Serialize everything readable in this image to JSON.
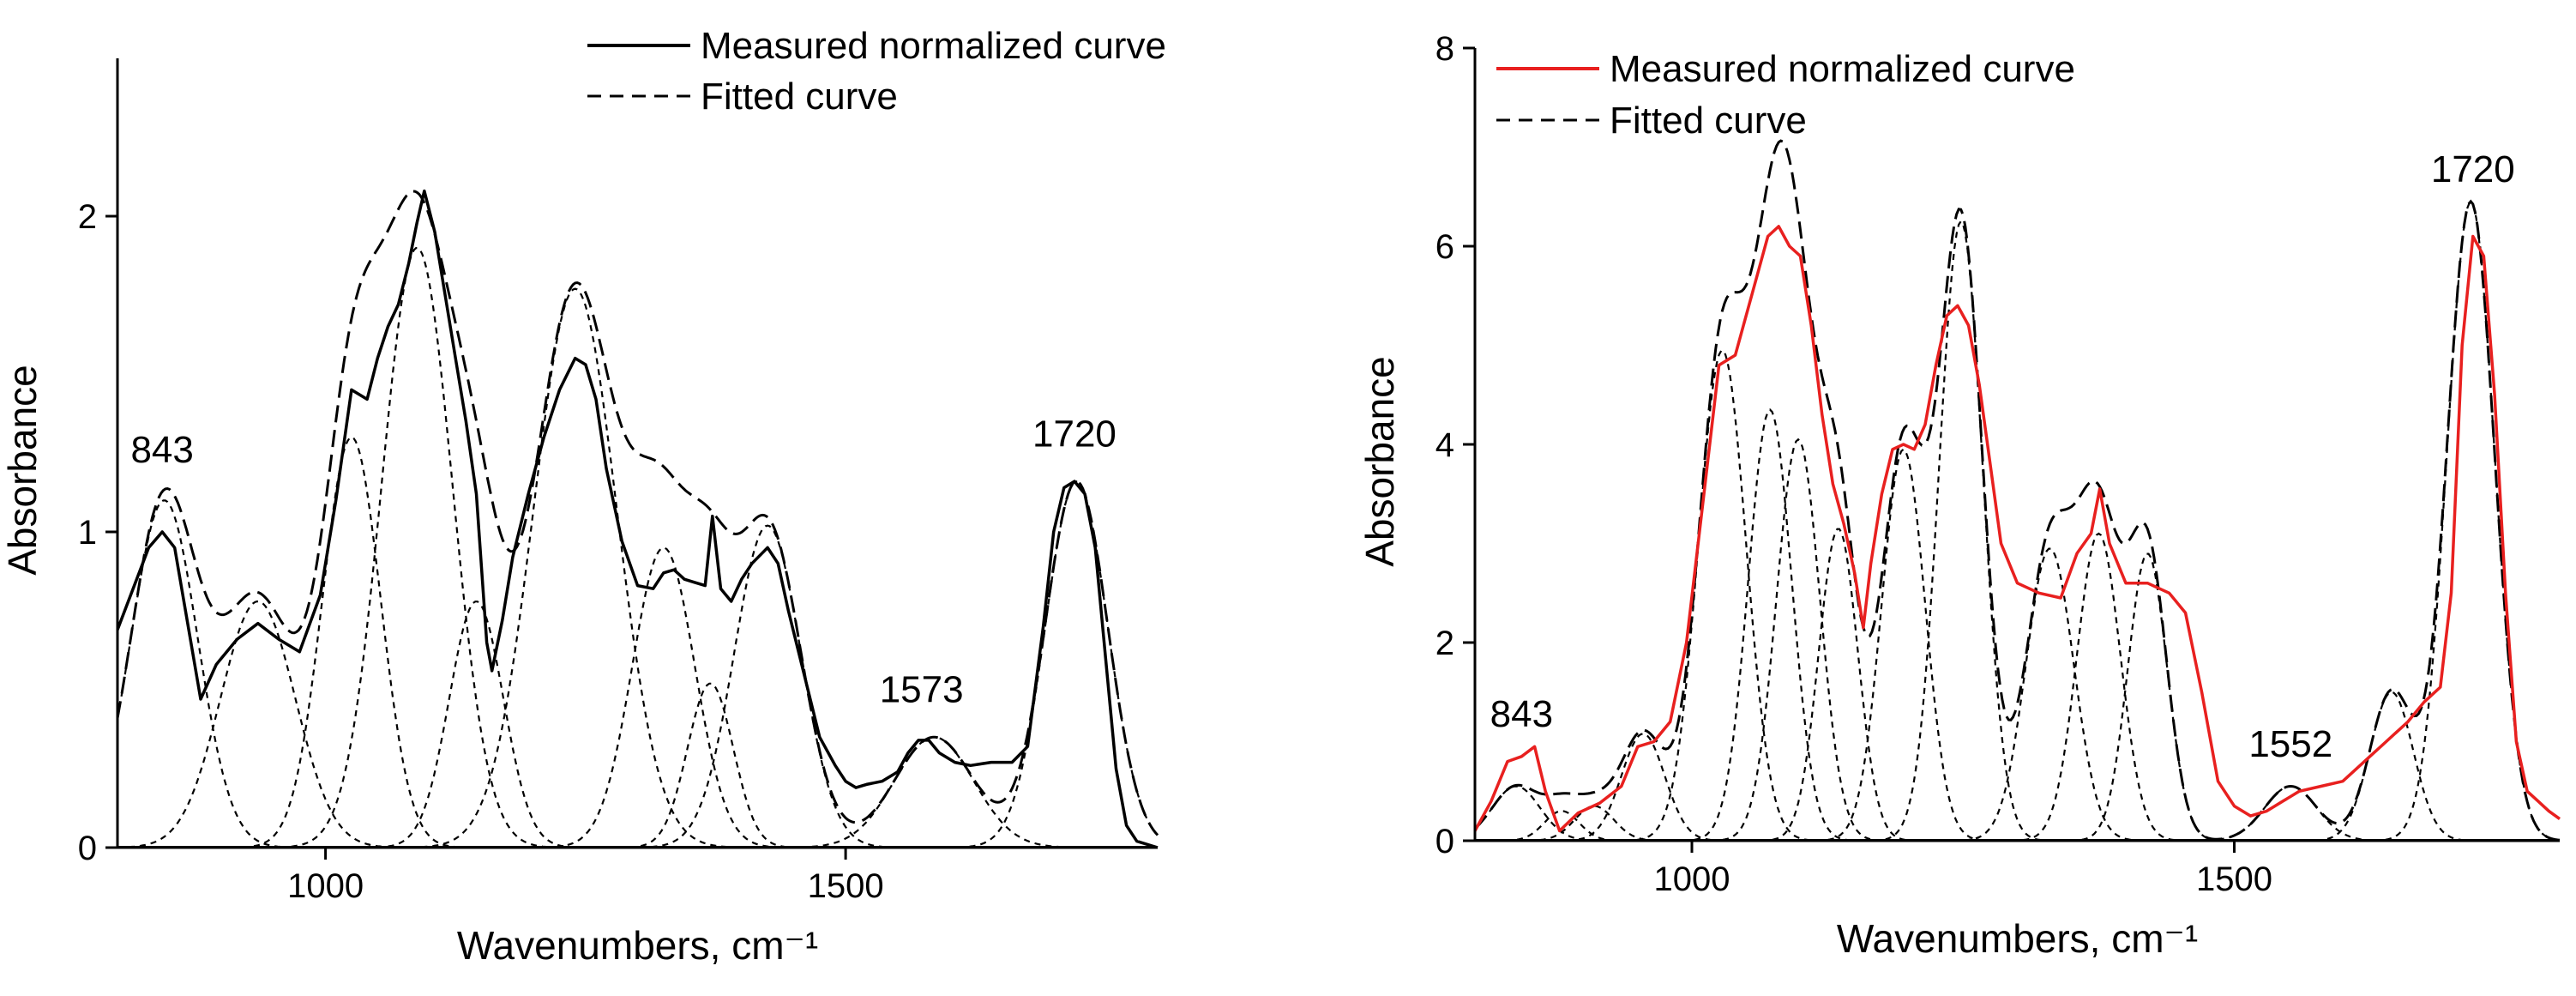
{
  "chart_data": [
    {
      "type": "line",
      "panel": "left",
      "xlabel": "Wavenumbers, cm⁻¹",
      "ylabel": "Absorbance",
      "xlim": [
        800,
        1800
      ],
      "ylim": [
        0,
        2.5
      ],
      "x_ticks": [
        1000,
        1500
      ],
      "y_ticks": [
        0,
        1,
        2
      ],
      "legend": {
        "position": "top-right",
        "measured_label": "Measured normalized curve",
        "fitted_label": "Fitted curve"
      },
      "colors": {
        "measured": "#000000",
        "fitted": "#000000",
        "components": "#000000"
      },
      "peak_labels": [
        {
          "text": "843",
          "x": 843,
          "y": 1.22
        },
        {
          "text": "1573",
          "x": 1573,
          "y": 0.46
        },
        {
          "text": "1720",
          "x": 1720,
          "y": 1.27
        }
      ],
      "series": [
        {
          "name": "Measured normalized curve",
          "style": "solid",
          "x": [
            800,
            815,
            830,
            843,
            855,
            868,
            880,
            895,
            915,
            935,
            955,
            975,
            995,
            1010,
            1025,
            1040,
            1050,
            1060,
            1070,
            1080,
            1088,
            1095,
            1105,
            1115,
            1125,
            1135,
            1145,
            1155,
            1160,
            1170,
            1180,
            1195,
            1210,
            1225,
            1240,
            1250,
            1260,
            1270,
            1285,
            1300,
            1315,
            1325,
            1335,
            1345,
            1355,
            1365,
            1372,
            1380,
            1390,
            1400,
            1410,
            1425,
            1435,
            1445,
            1460,
            1475,
            1490,
            1500,
            1510,
            1520,
            1535,
            1550,
            1560,
            1570,
            1580,
            1590,
            1605,
            1620,
            1640,
            1660,
            1675,
            1690,
            1700,
            1710,
            1720,
            1730,
            1740,
            1750,
            1760,
            1770,
            1780,
            1800
          ],
          "y": [
            0.69,
            0.82,
            0.95,
            1.0,
            0.95,
            0.7,
            0.47,
            0.58,
            0.66,
            0.71,
            0.66,
            0.62,
            0.8,
            1.1,
            1.45,
            1.42,
            1.55,
            1.65,
            1.72,
            1.85,
            1.98,
            2.08,
            1.95,
            1.75,
            1.55,
            1.35,
            1.12,
            0.65,
            0.56,
            0.72,
            0.92,
            1.12,
            1.3,
            1.45,
            1.55,
            1.53,
            1.42,
            1.2,
            0.97,
            0.83,
            0.82,
            0.87,
            0.88,
            0.85,
            0.84,
            0.83,
            1.05,
            0.82,
            0.78,
            0.85,
            0.9,
            0.95,
            0.9,
            0.75,
            0.55,
            0.35,
            0.26,
            0.21,
            0.19,
            0.2,
            0.21,
            0.24,
            0.3,
            0.34,
            0.34,
            0.3,
            0.27,
            0.26,
            0.27,
            0.27,
            0.32,
            0.7,
            1.0,
            1.14,
            1.16,
            1.12,
            0.95,
            0.6,
            0.25,
            0.07,
            0.02,
            0.0
          ]
        },
        {
          "name": "Fitted curve",
          "style": "long-dash",
          "components": [
            {
              "center": 845,
              "height": 1.1,
              "width": 32
            },
            {
              "center": 935,
              "height": 0.78,
              "width": 36
            },
            {
              "center": 1025,
              "height": 1.3,
              "width": 28
            },
            {
              "center": 1088,
              "height": 1.9,
              "width": 34
            },
            {
              "center": 1145,
              "height": 0.78,
              "width": 26
            },
            {
              "center": 1240,
              "height": 1.77,
              "width": 40
            },
            {
              "center": 1325,
              "height": 0.95,
              "width": 30
            },
            {
              "center": 1370,
              "height": 0.52,
              "width": 22
            },
            {
              "center": 1425,
              "height": 1.02,
              "width": 32
            },
            {
              "center": 1585,
              "height": 0.35,
              "width": 38
            },
            {
              "center": 1722,
              "height": 1.16,
              "width": 30
            }
          ]
        }
      ]
    },
    {
      "type": "line",
      "panel": "right",
      "xlabel": "Wavenumbers, cm⁻¹",
      "ylabel": "Absorbance",
      "xlim": [
        800,
        1800
      ],
      "ylim": [
        0,
        8
      ],
      "x_ticks": [
        1000,
        1500
      ],
      "y_ticks": [
        0,
        2,
        4,
        6,
        8
      ],
      "legend": {
        "position": "top-left",
        "measured_label": "Measured normalized curve",
        "fitted_label": "Fitted curve"
      },
      "colors": {
        "measured": "#e8201f",
        "fitted": "#000000",
        "components": "#000000"
      },
      "peak_labels": [
        {
          "text": "843",
          "x": 843,
          "y": 1.15
        },
        {
          "text": "1552",
          "x": 1552,
          "y": 0.85
        },
        {
          "text": "1720",
          "x": 1720,
          "y": 6.65
        }
      ],
      "series": [
        {
          "name": "Measured normalized curve",
          "style": "solid",
          "x": [
            800,
            815,
            830,
            843,
            855,
            865,
            878,
            895,
            915,
            935,
            950,
            965,
            980,
            995,
            1010,
            1025,
            1040,
            1055,
            1070,
            1080,
            1090,
            1100,
            1110,
            1120,
            1130,
            1140,
            1150,
            1158,
            1165,
            1175,
            1185,
            1195,
            1205,
            1215,
            1225,
            1235,
            1245,
            1255,
            1265,
            1275,
            1285,
            1300,
            1320,
            1340,
            1355,
            1368,
            1376,
            1385,
            1400,
            1420,
            1440,
            1455,
            1470,
            1485,
            1500,
            1515,
            1530,
            1545,
            1560,
            1580,
            1600,
            1620,
            1640,
            1660,
            1675,
            1690,
            1700,
            1710,
            1720,
            1730,
            1740,
            1750,
            1760,
            1770,
            1780,
            1790,
            1800
          ],
          "y": [
            0.1,
            0.4,
            0.8,
            0.85,
            0.95,
            0.5,
            0.1,
            0.28,
            0.38,
            0.55,
            0.95,
            1.0,
            1.2,
            2.0,
            3.4,
            4.8,
            4.9,
            5.5,
            6.1,
            6.2,
            6.0,
            5.9,
            5.2,
            4.3,
            3.6,
            3.2,
            2.7,
            2.15,
            2.8,
            3.5,
            3.95,
            4.0,
            3.95,
            4.2,
            4.8,
            5.3,
            5.4,
            5.2,
            4.6,
            3.8,
            3.0,
            2.6,
            2.5,
            2.45,
            2.9,
            3.1,
            3.55,
            3.0,
            2.6,
            2.6,
            2.5,
            2.3,
            1.5,
            0.6,
            0.35,
            0.25,
            0.3,
            0.4,
            0.5,
            0.55,
            0.6,
            0.8,
            1.0,
            1.2,
            1.4,
            1.55,
            2.5,
            5.0,
            6.1,
            5.9,
            4.5,
            2.5,
            1.0,
            0.5,
            0.4,
            0.3,
            0.22
          ]
        },
        {
          "name": "Fitted curve",
          "style": "long-dash",
          "components": [
            {
              "center": 838,
              "height": 0.55,
              "width": 22
            },
            {
              "center": 880,
              "height": 0.3,
              "width": 16
            },
            {
              "center": 910,
              "height": 0.35,
              "width": 18
            },
            {
              "center": 955,
              "height": 1.08,
              "width": 20
            },
            {
              "center": 1028,
              "height": 4.95,
              "width": 22
            },
            {
              "center": 1072,
              "height": 4.35,
              "width": 20
            },
            {
              "center": 1098,
              "height": 4.05,
              "width": 20
            },
            {
              "center": 1135,
              "height": 3.15,
              "width": 18
            },
            {
              "center": 1195,
              "height": 3.95,
              "width": 20
            },
            {
              "center": 1248,
              "height": 6.25,
              "width": 20
            },
            {
              "center": 1330,
              "height": 2.95,
              "width": 22
            },
            {
              "center": 1375,
              "height": 3.1,
              "width": 20
            },
            {
              "center": 1420,
              "height": 2.9,
              "width": 18
            },
            {
              "center": 1552,
              "height": 0.55,
              "width": 24
            },
            {
              "center": 1645,
              "height": 1.5,
              "width": 20
            },
            {
              "center": 1718,
              "height": 6.45,
              "width": 22
            }
          ]
        }
      ]
    }
  ]
}
